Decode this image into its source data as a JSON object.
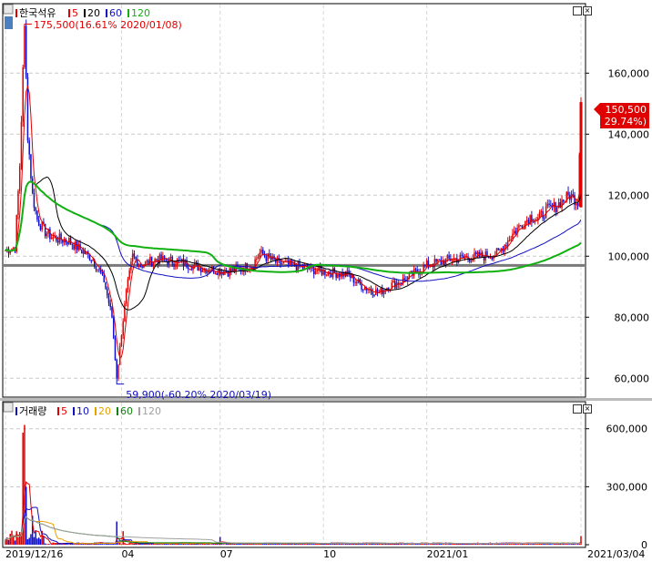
{
  "window_buttons": {
    "restore": "□",
    "close": "×"
  },
  "chart_data": [
    {
      "type": "candlestick",
      "legend": [
        {
          "label": "한국석유",
          "color": "#e00000"
        },
        {
          "label": "5",
          "color": "#e00000"
        },
        {
          "label": "20",
          "color": "#000000"
        },
        {
          "label": "60",
          "color": "#1010c0"
        },
        {
          "label": "120",
          "color": "#10b010"
        }
      ],
      "y_ticks": [
        60000,
        80000,
        100000,
        120000,
        140000,
        160000
      ],
      "y_tick_labels": [
        "60,000",
        "80,000",
        "100,000",
        "120,000",
        "140,000",
        "160,000"
      ],
      "ylim": [
        55000,
        178000
      ],
      "high_annotation": "175,500(16.61% 2020/01/08)",
      "low_annotation": "59,900(-60.20% 2020/03/19)",
      "current_price": "150,500",
      "current_change": "( 29.74%)",
      "reference_line": 97000,
      "summary_series": {
        "day_index": [
          0,
          6,
          9,
          12,
          14,
          17,
          20,
          25,
          30,
          40,
          55,
          62,
          67,
          70,
          73,
          76,
          80,
          85,
          95,
          110,
          125,
          140,
          155,
          160,
          170,
          180,
          200,
          215,
          225,
          235,
          240,
          245,
          250,
          265,
          280,
          300,
          310,
          320,
          330,
          335,
          340,
          345,
          350,
          355,
          360,
          362
        ],
        "price": [
          102000,
          103000,
          130000,
          175500,
          140000,
          120000,
          112000,
          108000,
          106000,
          105000,
          99000,
          92000,
          80000,
          59900,
          75000,
          88000,
          100000,
          97000,
          99000,
          98000,
          96000,
          95000,
          97000,
          101000,
          98000,
          97000,
          95000,
          94000,
          90000,
          88000,
          90000,
          91000,
          92000,
          97000,
          99000,
          100000,
          101000,
          108000,
          113000,
          112000,
          115000,
          116000,
          118000,
          120000,
          118000,
          150500
        ]
      }
    },
    {
      "type": "bar",
      "legend": [
        {
          "label": "거래량",
          "color": "#1010c0"
        },
        {
          "label": "5",
          "color": "#e00000"
        },
        {
          "label": "10",
          "color": "#1010c0"
        },
        {
          "label": "20",
          "color": "#e8a000"
        },
        {
          "label": "60",
          "color": "#108010"
        },
        {
          "label": "120",
          "color": "#a0a0a0"
        }
      ],
      "y_ticks": [
        0,
        300000,
        600000
      ],
      "y_tick_labels": [
        "0",
        "300,000",
        "600,000"
      ],
      "ylim": [
        0,
        660000
      ],
      "volume_peaks": [
        {
          "day": 11,
          "value": 580000
        },
        {
          "day": 12,
          "value": 620000
        },
        {
          "day": 13,
          "value": 300000
        },
        {
          "day": 17,
          "value": 150000
        },
        {
          "day": 70,
          "value": 120000
        },
        {
          "day": 74,
          "value": 70000
        },
        {
          "day": 135,
          "value": 40000
        },
        {
          "day": 362,
          "value": 45000
        }
      ]
    }
  ],
  "x_axis": {
    "labels": [
      {
        "text": "2019/12/16",
        "day": 0
      },
      {
        "text": "04",
        "day": 73
      },
      {
        "text": "07",
        "day": 135
      },
      {
        "text": "10",
        "day": 200
      },
      {
        "text": "2021/01",
        "day": 265
      },
      {
        "text": "2021/03/04",
        "day": 362
      }
    ]
  }
}
